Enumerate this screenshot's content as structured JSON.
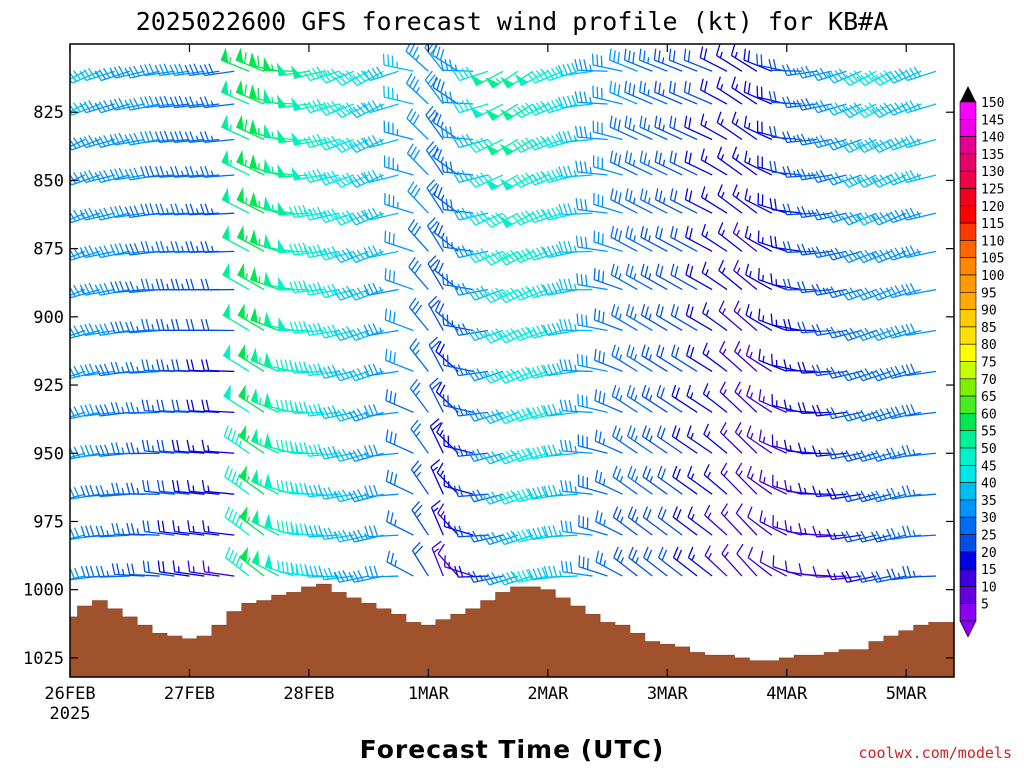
{
  "chart_data": {
    "type": "wind-barb-profile",
    "title": "2025022600 GFS forecast wind profile (kt) for KB#A",
    "xlabel": "Forecast Time (UTC)",
    "ylabel": "",
    "credit": "coolwx.com/models",
    "x_ticks": [
      {
        "day": 0,
        "label": "26FEB",
        "sublabel": "2025"
      },
      {
        "day": 1,
        "label": "27FEB"
      },
      {
        "day": 2,
        "label": "28FEB"
      },
      {
        "day": 3,
        "label": "1MAR"
      },
      {
        "day": 4,
        "label": "2MAR"
      },
      {
        "day": 5,
        "label": "3MAR"
      },
      {
        "day": 6,
        "label": "4MAR"
      },
      {
        "day": 7,
        "label": "5MAR"
      }
    ],
    "xlim_days": [
      0,
      7.4
    ],
    "y_ticks": [
      {
        "value": 825,
        "label": "825"
      },
      {
        "value": 850,
        "label": "850"
      },
      {
        "value": 875,
        "label": "875"
      },
      {
        "value": 900,
        "label": "900"
      },
      {
        "value": 925,
        "label": "925"
      },
      {
        "value": 950,
        "label": "950"
      },
      {
        "value": 975,
        "label": "975"
      },
      {
        "value": 1000,
        "label": "1000"
      },
      {
        "value": 1025,
        "label": "1025"
      }
    ],
    "ylim_hpa": [
      800,
      1032
    ],
    "levels_hpa": [
      810,
      822,
      835,
      848,
      862,
      876,
      890,
      905,
      920,
      935,
      950,
      965,
      980,
      995
    ],
    "times_days": [
      0.0,
      0.125,
      0.25,
      0.375,
      0.5,
      0.625,
      0.75,
      0.875,
      1.0,
      1.125,
      1.25,
      1.375,
      1.5,
      1.625,
      1.75,
      1.875,
      2.0,
      2.125,
      2.25,
      2.375,
      2.5,
      2.625,
      2.75,
      2.875,
      3.0,
      3.125,
      3.25,
      3.375,
      3.5,
      3.625,
      3.75,
      3.875,
      4.0,
      4.125,
      4.25,
      4.375,
      4.5,
      4.625,
      4.75,
      4.875,
      5.0,
      5.125,
      5.25,
      5.375,
      5.5,
      5.625,
      5.75,
      5.875,
      6.0,
      6.125,
      6.25,
      6.375,
      6.5,
      6.625,
      6.75,
      6.875,
      7.0,
      7.125,
      7.25
    ],
    "speed_profile_low_kt": [
      30,
      30,
      30,
      28,
      26,
      24,
      22,
      20,
      18,
      16,
      14,
      14,
      45,
      55,
      52,
      48,
      44,
      40,
      38,
      36,
      34,
      32,
      30,
      26,
      22,
      14,
      12,
      14,
      18,
      24,
      32,
      38,
      40,
      38,
      35,
      32,
      28,
      26,
      24,
      24,
      22,
      20,
      18,
      16,
      14,
      13,
      12,
      12,
      12,
      12,
      12,
      12,
      12,
      14,
      18,
      20,
      22,
      24,
      24
    ],
    "speed_profile_high_kt": [
      35,
      35,
      35,
      35,
      34,
      33,
      32,
      32,
      30,
      30,
      28,
      28,
      55,
      58,
      58,
      55,
      52,
      50,
      46,
      44,
      42,
      40,
      38,
      36,
      34,
      32,
      30,
      34,
      42,
      50,
      54,
      52,
      48,
      45,
      42,
      38,
      34,
      32,
      30,
      28,
      26,
      24,
      22,
      20,
      18,
      16,
      16,
      18,
      20,
      22,
      26,
      30,
      34,
      38,
      40,
      42,
      40,
      38,
      38
    ],
    "direction_profile_deg": [
      250,
      250,
      255,
      260,
      260,
      265,
      265,
      270,
      270,
      270,
      270,
      270,
      300,
      300,
      290,
      280,
      270,
      265,
      260,
      255,
      250,
      250,
      260,
      290,
      320,
      330,
      310,
      280,
      260,
      250,
      245,
      245,
      250,
      255,
      260,
      270,
      280,
      290,
      300,
      300,
      300,
      300,
      300,
      300,
      305,
      310,
      310,
      300,
      290,
      280,
      270,
      265,
      260,
      255,
      250,
      250,
      250,
      255,
      260
    ],
    "surface_pressure_hpa": [
      1010,
      1006,
      1004,
      1007,
      1010,
      1013,
      1016,
      1017,
      1018,
      1017,
      1013,
      1008,
      1005,
      1004,
      1002,
      1001,
      999,
      998,
      1001,
      1003,
      1005,
      1007,
      1009,
      1012,
      1013,
      1011,
      1009,
      1007,
      1004,
      1001,
      999,
      999,
      1000,
      1003,
      1006,
      1009,
      1012,
      1013,
      1016,
      1019,
      1020,
      1021,
      1023,
      1024,
      1024,
      1025,
      1026,
      1026,
      1025,
      1024,
      1024,
      1023,
      1022,
      1022,
      1019,
      1017,
      1015,
      1013,
      1012
    ],
    "colorbar": {
      "labels": [
        "150",
        "145",
        "140",
        "135",
        "130",
        "125",
        "120",
        "115",
        "110",
        "105",
        "100",
        "95",
        "90",
        "85",
        "80",
        "75",
        "70",
        "65",
        "60",
        "55",
        "50",
        "45",
        "40",
        "35",
        "30",
        "25",
        "20",
        "15",
        "10",
        "5"
      ],
      "colors": [
        "#ff00ff",
        "#f000e6",
        "#e60090",
        "#e8006a",
        "#f00046",
        "#f0001e",
        "#ff0000",
        "#ff3a00",
        "#ff6600",
        "#ff8800",
        "#ff9900",
        "#ffaa00",
        "#ffcc00",
        "#ffe100",
        "#ffff00",
        "#c8ff00",
        "#7df000",
        "#44ee22",
        "#00e650",
        "#00f09a",
        "#00f0c8",
        "#00e6e6",
        "#00bff0",
        "#0094ff",
        "#006cf0",
        "#0050e6",
        "#0000e6",
        "#3c00dc",
        "#6400dc",
        "#8c00f0"
      ]
    },
    "colors": {
      "terrain": "#a0522d",
      "terrain_edge": "#8a3f1f",
      "frame": "#000000"
    },
    "grid": false
  }
}
